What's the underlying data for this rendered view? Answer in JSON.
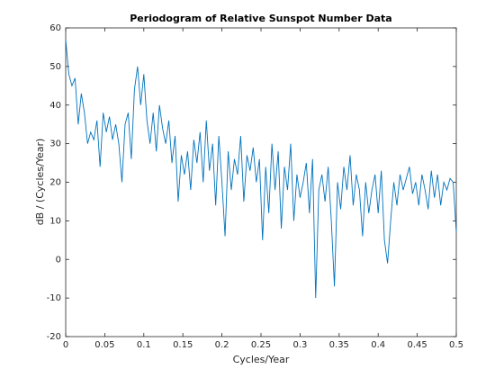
{
  "chart_data": {
    "type": "line",
    "title": "Periodogram of Relative Sunspot Number Data",
    "xlabel": "Cycles/Year",
    "ylabel": "dB / (Cycles/Year)",
    "color": "#0072bd",
    "x": [
      0,
      0.004,
      0.008,
      0.012,
      0.016,
      0.02,
      0.024,
      0.028,
      0.032,
      0.036,
      0.04,
      0.044,
      0.048,
      0.052,
      0.056,
      0.06,
      0.064,
      0.068,
      0.072,
      0.076,
      0.08,
      0.084,
      0.088,
      0.092,
      0.096,
      0.1,
      0.104,
      0.108,
      0.112,
      0.116,
      0.12,
      0.124,
      0.128,
      0.132,
      0.136,
      0.14,
      0.144,
      0.148,
      0.152,
      0.156,
      0.16,
      0.164,
      0.168,
      0.172,
      0.176,
      0.18,
      0.184,
      0.188,
      0.192,
      0.196,
      0.2,
      0.204,
      0.208,
      0.212,
      0.216,
      0.22,
      0.224,
      0.228,
      0.232,
      0.236,
      0.24,
      0.244,
      0.248,
      0.252,
      0.256,
      0.26,
      0.264,
      0.268,
      0.272,
      0.276,
      0.28,
      0.284,
      0.288,
      0.292,
      0.296,
      0.3,
      0.304,
      0.308,
      0.312,
      0.316,
      0.32,
      0.324,
      0.328,
      0.332,
      0.336,
      0.34,
      0.344,
      0.348,
      0.352,
      0.356,
      0.36,
      0.364,
      0.368,
      0.372,
      0.376,
      0.38,
      0.384,
      0.388,
      0.392,
      0.396,
      0.4,
      0.404,
      0.408,
      0.412,
      0.416,
      0.42,
      0.424,
      0.428,
      0.432,
      0.436,
      0.44,
      0.444,
      0.448,
      0.452,
      0.456,
      0.46,
      0.464,
      0.468,
      0.472,
      0.476,
      0.48,
      0.484,
      0.488,
      0.492,
      0.496,
      0.5
    ],
    "values": [
      57,
      48,
      45,
      47,
      35,
      43,
      38,
      30,
      33,
      31,
      36,
      24,
      38,
      33,
      37,
      31,
      35,
      30,
      20,
      35,
      38,
      26,
      44,
      50,
      40,
      48,
      36,
      30,
      38,
      28,
      40,
      34,
      30,
      36,
      25,
      32,
      15,
      27,
      22,
      28,
      18,
      31,
      25,
      33,
      20,
      36,
      23,
      30,
      14,
      32,
      20,
      6,
      28,
      18,
      26,
      22,
      32,
      15,
      27,
      23,
      29,
      20,
      26,
      5,
      24,
      12,
      30,
      18,
      28,
      8,
      24,
      18,
      30,
      10,
      22,
      16,
      20,
      25,
      12,
      26,
      -10,
      18,
      22,
      15,
      24,
      10,
      -7,
      20,
      13,
      24,
      18,
      27,
      14,
      22,
      18,
      6,
      20,
      12,
      18,
      22,
      12,
      23,
      5,
      -1,
      10,
      20,
      14,
      22,
      18,
      21,
      24,
      17,
      20,
      14,
      22,
      18,
      13,
      23,
      16,
      22,
      14,
      20,
      18,
      21,
      20,
      7
    ],
    "xlim": [
      0,
      0.5
    ],
    "xticks": [
      0,
      0.05,
      0.1,
      0.15,
      0.2,
      0.25,
      0.3,
      0.35,
      0.4,
      0.45,
      0.5
    ],
    "ylim": [
      -20,
      60
    ],
    "yticks": [
      -20,
      -10,
      0,
      10,
      20,
      30,
      40,
      50,
      60
    ]
  }
}
